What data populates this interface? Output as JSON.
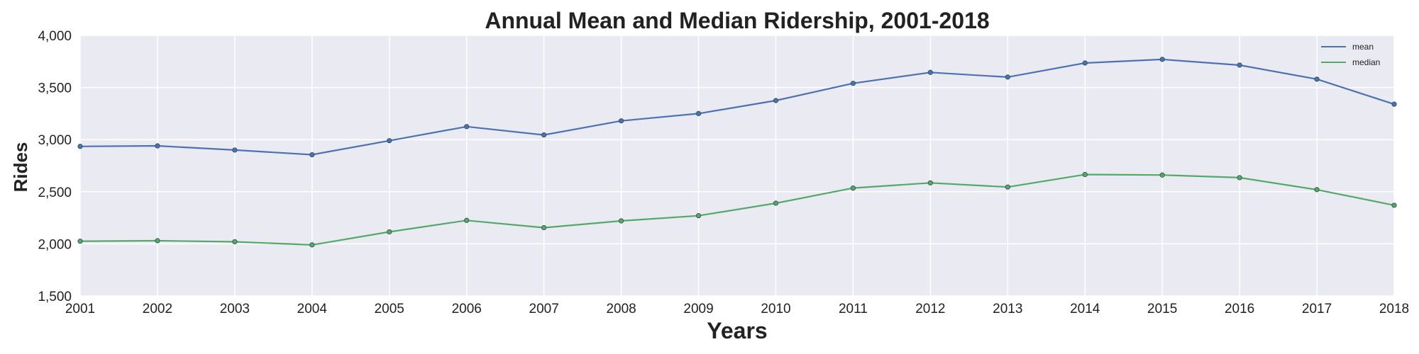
{
  "chart_data": {
    "type": "line",
    "title": "Annual Mean and Median Ridership, 2001-2018",
    "xlabel": "Years",
    "ylabel": "Rides",
    "x": [
      2001,
      2002,
      2003,
      2004,
      2005,
      2006,
      2007,
      2008,
      2009,
      2010,
      2011,
      2012,
      2013,
      2014,
      2015,
      2016,
      2017,
      2018
    ],
    "x_tick_labels": [
      "2001",
      "2002",
      "2003",
      "2004",
      "2005",
      "2006",
      "2007",
      "2008",
      "2009",
      "2010",
      "2011",
      "2012",
      "2013",
      "2014",
      "2015",
      "2016",
      "2017",
      "2018"
    ],
    "ylim": [
      1500,
      4000
    ],
    "y_ticks": [
      1500,
      2000,
      2500,
      3000,
      3500,
      4000
    ],
    "y_tick_labels": [
      "1,500",
      "2,000",
      "2,500",
      "3,000",
      "3,500",
      "4,000"
    ],
    "grid": true,
    "background": "#eaeaf2",
    "legend_position": "top-right",
    "series": [
      {
        "name": "mean",
        "color": "#4c72b0",
        "values": [
          2935,
          2940,
          2900,
          2855,
          2990,
          3125,
          3045,
          3180,
          3250,
          3375,
          3540,
          3645,
          3600,
          3735,
          3770,
          3715,
          3580,
          3340
        ]
      },
      {
        "name": "median",
        "color": "#55a868",
        "values": [
          2025,
          2030,
          2020,
          1990,
          2115,
          2225,
          2155,
          2220,
          2270,
          2390,
          2535,
          2585,
          2545,
          2665,
          2660,
          2635,
          2520,
          2370
        ]
      }
    ]
  }
}
